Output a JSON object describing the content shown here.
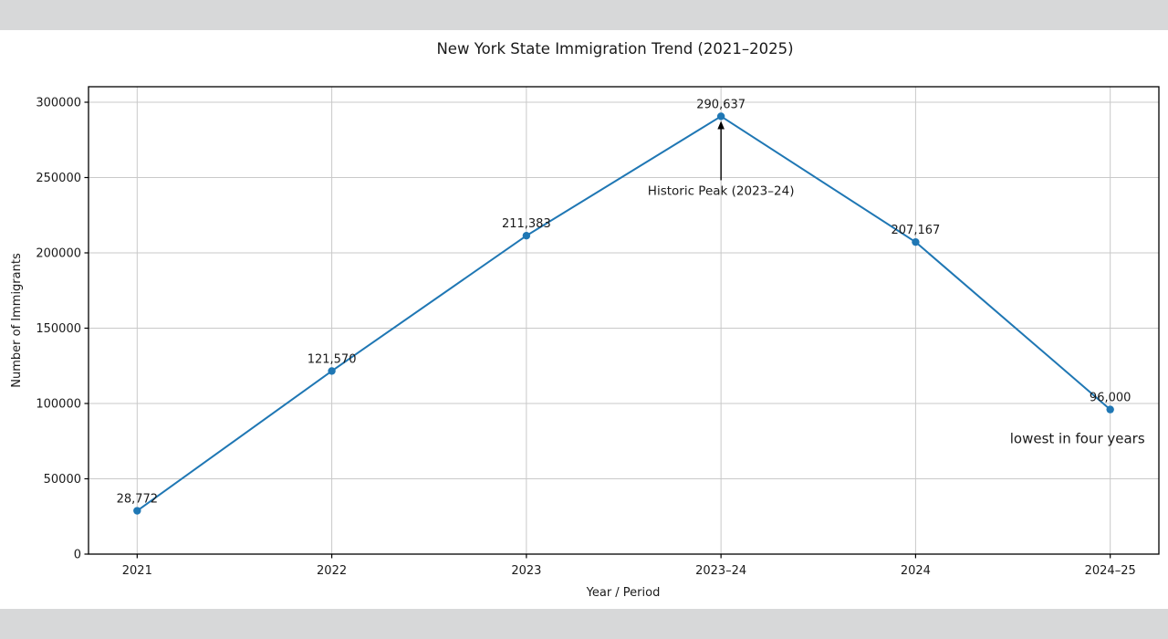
{
  "page": {
    "background_color": "#d7d8d9",
    "figure_background": "#ffffff"
  },
  "chart_data": {
    "type": "line",
    "title": "New York State Immigration Trend (2021–2025)",
    "xlabel": "Year / Period",
    "ylabel": "Number of Immigrants",
    "categories": [
      "2021",
      "2022",
      "2023",
      "2023–24",
      "2024",
      "2024–25"
    ],
    "values": [
      28772,
      121570,
      211383,
      290637,
      207167,
      96000
    ],
    "value_labels": [
      "28,772",
      "121,570",
      "211,383",
      "290,637",
      "207,167",
      "96,000"
    ],
    "yticks": [
      0,
      50000,
      100000,
      150000,
      200000,
      250000,
      300000
    ],
    "ytick_labels": [
      "0",
      "50000",
      "100000",
      "150000",
      "200000",
      "250000",
      "300000"
    ],
    "ylim": [
      0,
      310300
    ],
    "grid": true,
    "legend": "none",
    "line_color": "#1f77b4",
    "marker": "circle",
    "grid_color": "#c9c9c9",
    "spine_color": "#000000",
    "annotations": [
      {
        "text": "Historic Peak (2023–24)",
        "style": "arrow",
        "point_index": 3
      },
      {
        "text": "lowest in four years",
        "style": "plain",
        "point_index": 5
      }
    ]
  }
}
